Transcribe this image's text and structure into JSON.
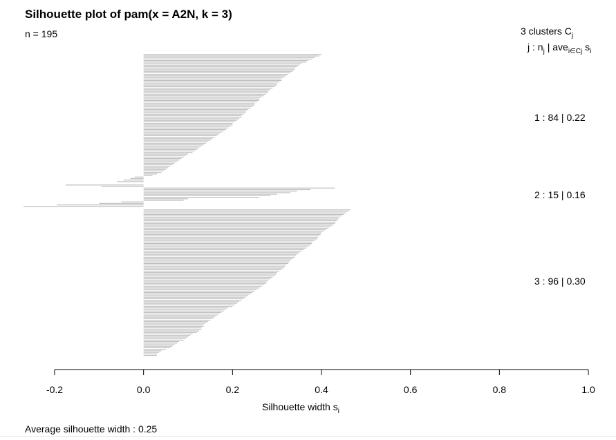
{
  "chart_data": {
    "type": "bar",
    "orientation": "horizontal",
    "title": "Silhouette plot of pam(x = A2N, k = 3)",
    "n_label": "n = 195",
    "xlabel_main": "Silhouette width s",
    "xlabel_sub": "i",
    "xlim": [
      -0.2,
      1.0
    ],
    "xticks": [
      "-0.2",
      "0.0",
      "0.2",
      "0.4",
      "0.6",
      "0.8",
      "1.0"
    ],
    "bar_color": "#bebebe",
    "legend": {
      "line1_main": "3  clusters  C",
      "line1_sub": "j",
      "line2_a": "j :  n",
      "line2_a_sub": "j",
      "line2_b": " | ave",
      "line2_b_sub": "i∈Cj",
      "line2_c": "  s",
      "line2_c_sub": "i"
    },
    "clusters": [
      {
        "label": "1 :  84  |  0.22",
        "size": 84,
        "average": 0.22,
        "values": [
          0.4,
          0.395,
          0.385,
          0.38,
          0.37,
          0.365,
          0.355,
          0.35,
          0.345,
          0.34,
          0.34,
          0.335,
          0.33,
          0.325,
          0.32,
          0.315,
          0.31,
          0.31,
          0.305,
          0.3,
          0.3,
          0.295,
          0.29,
          0.285,
          0.28,
          0.28,
          0.275,
          0.27,
          0.265,
          0.26,
          0.26,
          0.255,
          0.25,
          0.25,
          0.245,
          0.24,
          0.235,
          0.23,
          0.23,
          0.225,
          0.22,
          0.22,
          0.215,
          0.21,
          0.205,
          0.2,
          0.2,
          0.195,
          0.19,
          0.185,
          0.18,
          0.175,
          0.17,
          0.165,
          0.16,
          0.155,
          0.15,
          0.145,
          0.14,
          0.135,
          0.13,
          0.125,
          0.12,
          0.115,
          0.11,
          0.1,
          0.095,
          0.09,
          0.085,
          0.08,
          0.075,
          0.07,
          0.065,
          0.06,
          0.055,
          0.05,
          0.045,
          0.04,
          0.03,
          0.02,
          -0.02,
          -0.03,
          -0.045,
          -0.06
        ]
      },
      {
        "label": "2 :  15  |  0.16",
        "size": 15,
        "average": 0.16,
        "values": [
          -0.175,
          -0.095,
          0.43,
          0.375,
          0.345,
          0.33,
          0.3,
          0.285,
          0.26,
          0.1,
          0.09,
          -0.05,
          -0.1,
          -0.195,
          -0.27
        ]
      },
      {
        "label": "3 :  96  |  0.30",
        "size": 96,
        "average": 0.3,
        "values": [
          0.465,
          0.46,
          0.455,
          0.45,
          0.445,
          0.44,
          0.438,
          0.435,
          0.432,
          0.43,
          0.425,
          0.42,
          0.415,
          0.41,
          0.405,
          0.4,
          0.398,
          0.395,
          0.392,
          0.39,
          0.385,
          0.38,
          0.378,
          0.375,
          0.37,
          0.365,
          0.36,
          0.355,
          0.35,
          0.345,
          0.342,
          0.34,
          0.335,
          0.33,
          0.328,
          0.325,
          0.32,
          0.318,
          0.315,
          0.31,
          0.305,
          0.3,
          0.298,
          0.295,
          0.29,
          0.285,
          0.28,
          0.278,
          0.275,
          0.27,
          0.265,
          0.26,
          0.255,
          0.25,
          0.245,
          0.24,
          0.235,
          0.23,
          0.225,
          0.22,
          0.215,
          0.21,
          0.205,
          0.2,
          0.19,
          0.185,
          0.18,
          0.175,
          0.17,
          0.165,
          0.16,
          0.155,
          0.15,
          0.145,
          0.14,
          0.135,
          0.135,
          0.13,
          0.13,
          0.125,
          0.12,
          0.11,
          0.105,
          0.1,
          0.095,
          0.09,
          0.08,
          0.075,
          0.07,
          0.065,
          0.06,
          0.05,
          0.04,
          0.035,
          0.03,
          0.03
        ]
      }
    ]
  },
  "footer": {
    "avg_text": "Average silhouette width :  0.25"
  }
}
